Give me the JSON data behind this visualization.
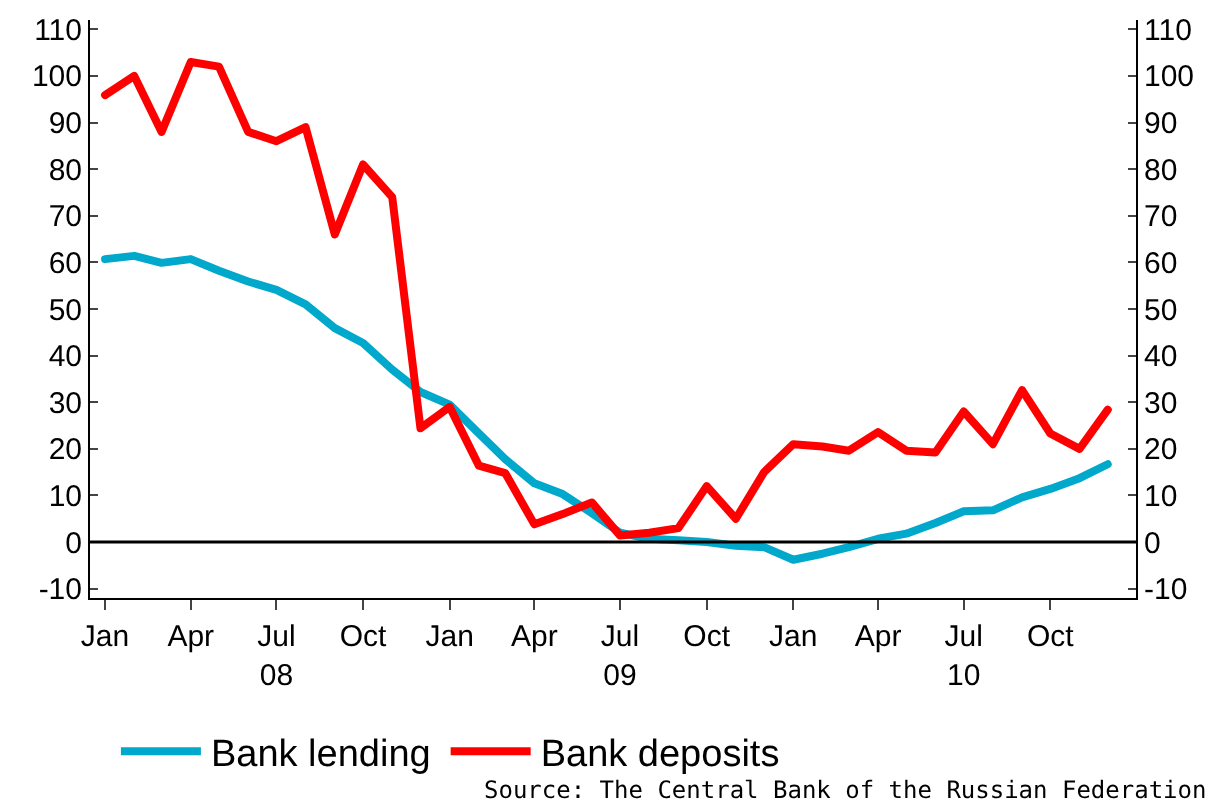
{
  "chart_data": {
    "type": "line",
    "x": [
      "2008-01",
      "2008-02",
      "2008-03",
      "2008-04",
      "2008-05",
      "2008-06",
      "2008-07",
      "2008-08",
      "2008-09",
      "2008-10",
      "2008-11",
      "2008-12",
      "2009-01",
      "2009-02",
      "2009-03",
      "2009-04",
      "2009-05",
      "2009-06",
      "2009-07",
      "2009-08",
      "2009-09",
      "2009-10",
      "2009-11",
      "2009-12",
      "2010-01",
      "2010-02",
      "2010-03",
      "2010-04",
      "2010-05",
      "2010-06",
      "2010-07",
      "2010-08",
      "2010-09",
      "2010-10",
      "2010-11",
      "2010-12"
    ],
    "series": [
      {
        "name": "Bank lending",
        "color": "#00a8cc",
        "values": [
          60.7,
          61.4,
          59.9,
          60.7,
          58.2,
          55.9,
          54.1,
          51,
          45.9,
          42.7,
          37,
          32.2,
          29.5,
          23.3,
          17.8,
          12.6,
          10.3,
          6.2,
          2,
          0.7,
          0.4,
          0,
          -0.8,
          -1.1,
          -3.8,
          -2.5,
          -1.1,
          0.7,
          1.8,
          4.1,
          6.6,
          6.8,
          9.6,
          11.4,
          13.7,
          16.7
        ]
      },
      {
        "name": "Bank deposits",
        "color": "#ff0000",
        "values": [
          95.9,
          100,
          88,
          103,
          102,
          88,
          86,
          89,
          66,
          81,
          74,
          24.4,
          29,
          16.4,
          14.8,
          3.8,
          6,
          8.5,
          1.4,
          2,
          3,
          12,
          5,
          15,
          21,
          20.5,
          19.6,
          23.6,
          19.6,
          19.2,
          28,
          21,
          32.6,
          23.3,
          20,
          28.4
        ]
      }
    ],
    "xlim": [
      "2007-12-16",
      "2010-12-31"
    ],
    "xticks": [
      {
        "value": "2008-01",
        "label": "Jan"
      },
      {
        "value": "2008-04",
        "label": "Apr"
      },
      {
        "value": "2008-07",
        "label": "Jul\n08"
      },
      {
        "value": "2008-10",
        "label": "Oct"
      },
      {
        "value": "2009-01",
        "label": "Jan"
      },
      {
        "value": "2009-04",
        "label": "Apr"
      },
      {
        "value": "2009-07",
        "label": "Jul\n09"
      },
      {
        "value": "2009-10",
        "label": "Oct"
      },
      {
        "value": "2010-01",
        "label": "Jan"
      },
      {
        "value": "2010-04",
        "label": "Apr"
      },
      {
        "value": "2010-07",
        "label": "Jul\n10"
      },
      {
        "value": "2010-10",
        "label": "Oct"
      }
    ],
    "ylim": [
      -12,
      112
    ],
    "yticks": [
      -10,
      0,
      10,
      20,
      30,
      40,
      50,
      60,
      70,
      80,
      90,
      100,
      110
    ],
    "y2lim": [
      -12,
      112
    ],
    "y2ticks": [
      -10,
      0,
      10,
      20,
      30,
      40,
      50,
      60,
      70,
      80,
      90,
      100,
      110
    ],
    "ref_lines": [
      {
        "axis": "y",
        "value": 0,
        "color": "#000000"
      }
    ],
    "grid": false,
    "legend": "bottom left",
    "annotations": [
      "Source: The Central Bank of the Russian Federation"
    ]
  }
}
